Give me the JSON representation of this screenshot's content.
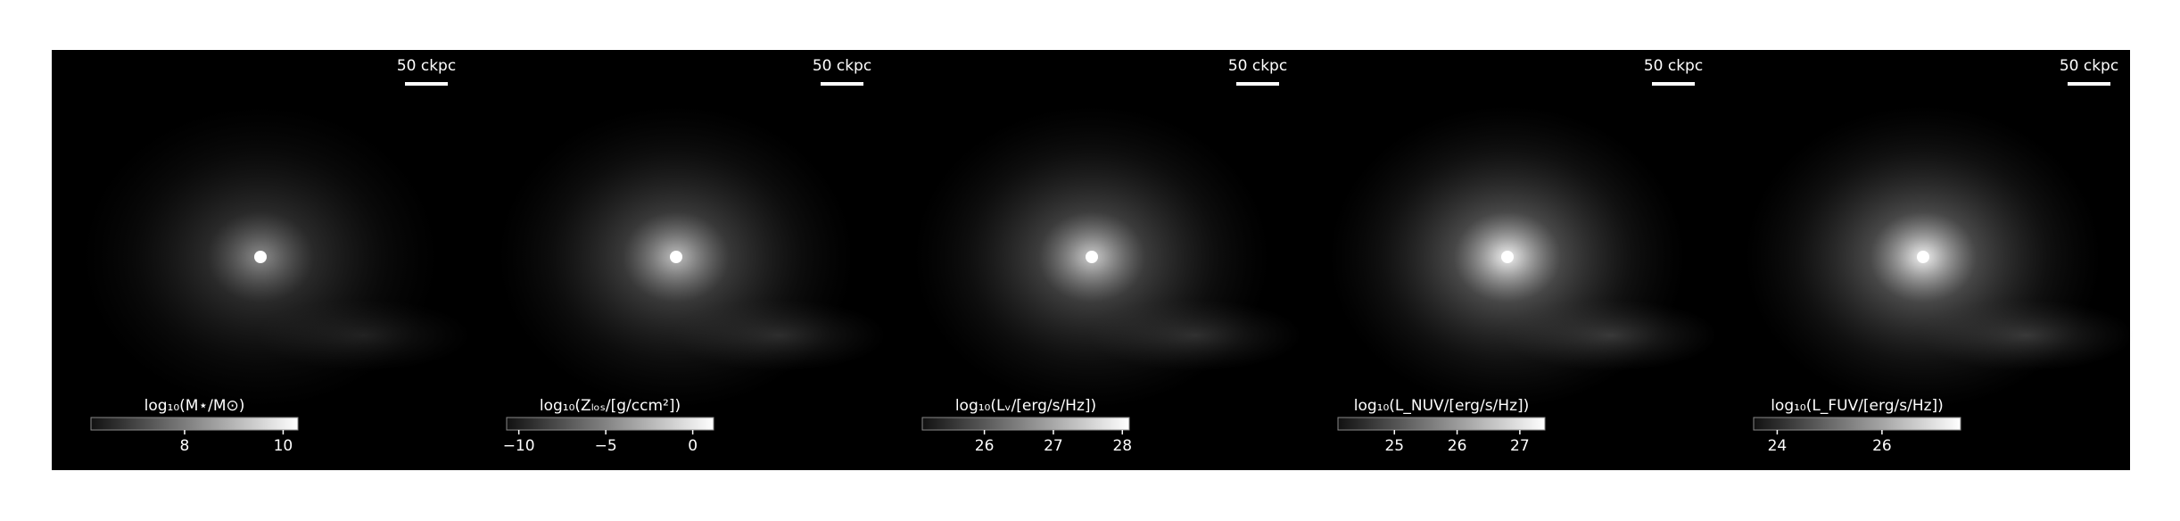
{
  "chart_data": [
    {
      "type": "image",
      "colormap": "gray",
      "scale_bar_label": "50 ckpc",
      "title": "log₁₀(M⋆/M⊙)",
      "xlim": [
        6.1,
        10.3
      ],
      "xticks": [
        8,
        10
      ]
    },
    {
      "type": "image",
      "colormap": "gray",
      "scale_bar_label": "50 ckpc",
      "title": "log₁₀(Zₗₒₛ/[g/ccm²])",
      "xlim": [
        -10.7,
        1.2
      ],
      "xticks": [
        {
          "value": -10,
          "label": "−10"
        },
        {
          "value": -5,
          "label": "−5"
        },
        0
      ]
    },
    {
      "type": "image",
      "colormap": "gray",
      "scale_bar_label": "50 ckpc",
      "title": "log₁₀(Lᵥ/[erg/s/Hz])",
      "xlim": [
        25.1,
        28.1
      ],
      "xticks": [
        26,
        27,
        28
      ]
    },
    {
      "type": "image",
      "colormap": "gray",
      "scale_bar_label": "50 ckpc",
      "title": "log₁₀(L_NUV/[erg/s/Hz])",
      "xlim": [
        24.1,
        27.4
      ],
      "xticks": [
        25,
        26,
        27
      ]
    },
    {
      "type": "image",
      "colormap": "gray",
      "scale_bar_label": "50 ckpc",
      "title": "log₁₀(L_FUV/[erg/s/Hz])",
      "xlim": [
        23.55,
        27.5
      ],
      "xticks": [
        24,
        26
      ]
    }
  ]
}
